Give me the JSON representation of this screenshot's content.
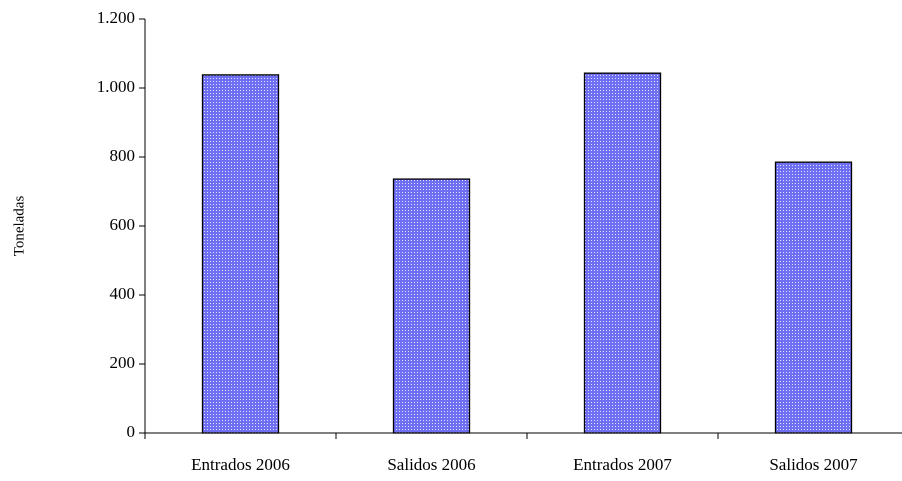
{
  "chart_data": {
    "type": "bar",
    "y_label": "Toneladas",
    "categories": [
      "Entrados 2006",
      "Salidos 2006",
      "Entrados 2007",
      "Salidos 2007"
    ],
    "values": [
      1038,
      736,
      1043,
      785
    ],
    "color": "#6f6ff2",
    "ylim": [
      0,
      1200
    ],
    "yticks": [
      0,
      200,
      400,
      600,
      800,
      {
        "value": 1000,
        "label": "1.000"
      },
      {
        "value": 1200,
        "label": "1.200"
      }
    ],
    "grid": false
  }
}
